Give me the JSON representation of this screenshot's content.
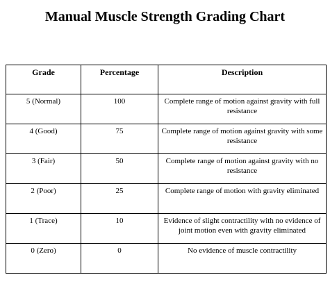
{
  "title": "Manual Muscle Strength Grading Chart",
  "table": {
    "headers": [
      "Grade",
      "Percentage",
      "Description"
    ],
    "rows": [
      {
        "grade": "5 (Normal)",
        "percentage": "100",
        "description": "Complete range of motion against gravity with full resistance"
      },
      {
        "grade": "4 (Good)",
        "percentage": "75",
        "description": "Complete range of motion against gravity with some resistance"
      },
      {
        "grade": "3 (Fair)",
        "percentage": "50",
        "description": "Complete range of motion against gravity with no resistance"
      },
      {
        "grade": "2 (Poor)",
        "percentage": "25",
        "description": "Complete range of motion with gravity eliminated"
      },
      {
        "grade": "1 (Trace)",
        "percentage": "10",
        "description": "Evidence of slight contractility with no evidence of joint motion even with gravity eliminated"
      },
      {
        "grade": "0 (Zero)",
        "percentage": "0",
        "description": "No evidence of muscle contractility"
      }
    ]
  }
}
